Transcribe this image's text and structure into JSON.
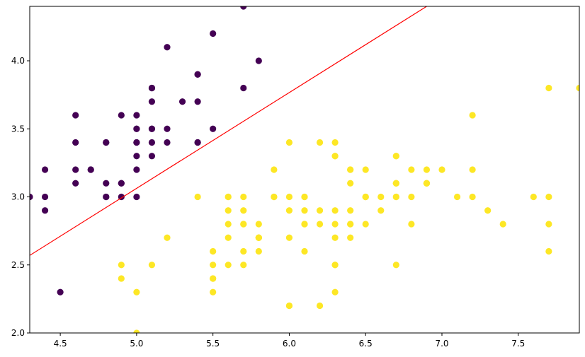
{
  "chart_data": {
    "type": "scatter",
    "xlim": [
      4.3,
      7.9
    ],
    "ylim": [
      2.0,
      4.4
    ],
    "x_ticks": [
      "4.5",
      "5.0",
      "5.5",
      "6.0",
      "6.5",
      "7.0",
      "7.5"
    ],
    "y_ticks": [
      "2.0",
      "2.5",
      "3.0",
      "3.5",
      "4.0"
    ],
    "grid": false,
    "colors": {
      "class_a": "#440154",
      "class_b": "#fde725",
      "boundary": "#ff0000"
    },
    "decision_boundary": {
      "points": [
        [
          4.3,
          2.57
        ],
        [
          6.9,
          4.4
        ]
      ]
    },
    "series": [
      {
        "points": [
          [
            5.1,
            3.5
          ],
          [
            4.9,
            3.0
          ],
          [
            4.7,
            3.2
          ],
          [
            4.6,
            3.1
          ],
          [
            5.0,
            3.6
          ],
          [
            5.4,
            3.9
          ],
          [
            4.6,
            3.4
          ],
          [
            5.0,
            3.4
          ],
          [
            4.4,
            2.9
          ],
          [
            4.9,
            3.1
          ],
          [
            5.4,
            3.7
          ],
          [
            4.8,
            3.4
          ],
          [
            4.8,
            3.0
          ],
          [
            4.3,
            3.0
          ],
          [
            5.8,
            4.0
          ],
          [
            5.7,
            4.4
          ],
          [
            5.4,
            3.9
          ],
          [
            5.1,
            3.5
          ],
          [
            5.7,
            3.8
          ],
          [
            5.1,
            3.8
          ],
          [
            5.4,
            3.4
          ],
          [
            5.1,
            3.7
          ],
          [
            4.6,
            3.6
          ],
          [
            5.1,
            3.3
          ],
          [
            4.8,
            3.4
          ],
          [
            5.0,
            3.0
          ],
          [
            5.0,
            3.4
          ],
          [
            5.2,
            3.5
          ],
          [
            5.2,
            3.4
          ],
          [
            4.7,
            3.2
          ],
          [
            4.8,
            3.1
          ],
          [
            5.4,
            3.4
          ],
          [
            5.2,
            4.1
          ],
          [
            5.5,
            4.2
          ],
          [
            4.9,
            3.1
          ],
          [
            5.0,
            3.2
          ],
          [
            5.5,
            3.5
          ],
          [
            4.9,
            3.6
          ],
          [
            4.4,
            3.0
          ],
          [
            5.1,
            3.4
          ],
          [
            5.0,
            3.5
          ],
          [
            4.5,
            2.3
          ],
          [
            4.4,
            3.2
          ],
          [
            5.0,
            3.5
          ],
          [
            5.1,
            3.8
          ],
          [
            4.8,
            3.0
          ],
          [
            5.1,
            3.8
          ],
          [
            4.6,
            3.2
          ],
          [
            5.3,
            3.7
          ],
          [
            5.0,
            3.3
          ]
        ]
      },
      {
        "points": [
          [
            7.0,
            3.2
          ],
          [
            6.4,
            3.2
          ],
          [
            6.9,
            3.1
          ],
          [
            5.5,
            2.3
          ],
          [
            6.5,
            2.8
          ],
          [
            5.7,
            2.8
          ],
          [
            6.3,
            3.3
          ],
          [
            4.9,
            2.4
          ],
          [
            6.6,
            2.9
          ],
          [
            5.2,
            2.7
          ],
          [
            5.0,
            2.0
          ],
          [
            5.9,
            3.0
          ],
          [
            6.0,
            2.2
          ],
          [
            6.1,
            2.9
          ],
          [
            5.6,
            2.9
          ],
          [
            6.7,
            3.1
          ],
          [
            5.6,
            3.0
          ],
          [
            5.8,
            2.7
          ],
          [
            6.2,
            2.2
          ],
          [
            5.6,
            2.5
          ],
          [
            5.9,
            3.2
          ],
          [
            6.1,
            2.8
          ],
          [
            6.3,
            2.5
          ],
          [
            6.1,
            2.8
          ],
          [
            6.4,
            2.9
          ],
          [
            6.6,
            3.0
          ],
          [
            6.8,
            2.8
          ],
          [
            6.7,
            3.0
          ],
          [
            6.0,
            2.9
          ],
          [
            5.7,
            2.6
          ],
          [
            5.5,
            2.4
          ],
          [
            5.5,
            2.4
          ],
          [
            5.8,
            2.7
          ],
          [
            6.0,
            2.7
          ],
          [
            5.4,
            3.0
          ],
          [
            6.0,
            3.4
          ],
          [
            6.7,
            3.1
          ],
          [
            6.3,
            2.3
          ],
          [
            5.6,
            3.0
          ],
          [
            5.5,
            2.5
          ],
          [
            5.5,
            2.6
          ],
          [
            6.1,
            3.0
          ],
          [
            5.8,
            2.6
          ],
          [
            5.0,
            2.3
          ],
          [
            5.6,
            2.7
          ],
          [
            5.7,
            3.0
          ],
          [
            5.7,
            2.9
          ],
          [
            6.2,
            2.9
          ],
          [
            5.1,
            2.5
          ],
          [
            5.7,
            2.8
          ],
          [
            6.3,
            3.3
          ],
          [
            5.8,
            2.7
          ],
          [
            7.1,
            3.0
          ],
          [
            6.3,
            2.9
          ],
          [
            6.5,
            3.0
          ],
          [
            7.6,
            3.0
          ],
          [
            4.9,
            2.5
          ],
          [
            7.3,
            2.9
          ],
          [
            6.7,
            2.5
          ],
          [
            7.2,
            3.6
          ],
          [
            6.5,
            3.2
          ],
          [
            6.4,
            2.7
          ],
          [
            6.8,
            3.0
          ],
          [
            5.7,
            2.5
          ],
          [
            5.8,
            2.8
          ],
          [
            6.4,
            3.2
          ],
          [
            6.5,
            3.0
          ],
          [
            7.7,
            3.8
          ],
          [
            7.7,
            2.6
          ],
          [
            6.0,
            2.2
          ],
          [
            6.9,
            3.2
          ],
          [
            5.6,
            2.8
          ],
          [
            7.7,
            2.8
          ],
          [
            6.3,
            2.7
          ],
          [
            6.7,
            3.3
          ],
          [
            7.2,
            3.2
          ],
          [
            6.2,
            2.8
          ],
          [
            6.1,
            3.0
          ],
          [
            6.4,
            2.8
          ],
          [
            7.2,
            3.0
          ],
          [
            7.4,
            2.8
          ],
          [
            7.9,
            3.8
          ],
          [
            6.4,
            2.8
          ],
          [
            6.3,
            2.8
          ],
          [
            6.1,
            2.6
          ],
          [
            7.7,
            3.0
          ],
          [
            6.3,
            3.4
          ],
          [
            6.4,
            3.1
          ],
          [
            6.0,
            3.0
          ],
          [
            6.9,
            3.1
          ],
          [
            6.7,
            3.1
          ],
          [
            6.9,
            3.1
          ],
          [
            5.8,
            2.7
          ],
          [
            6.8,
            3.2
          ],
          [
            6.7,
            3.3
          ],
          [
            6.7,
            3.0
          ],
          [
            6.3,
            2.5
          ],
          [
            6.5,
            3.0
          ],
          [
            6.2,
            3.4
          ],
          [
            5.9,
            3.0
          ]
        ]
      }
    ]
  }
}
